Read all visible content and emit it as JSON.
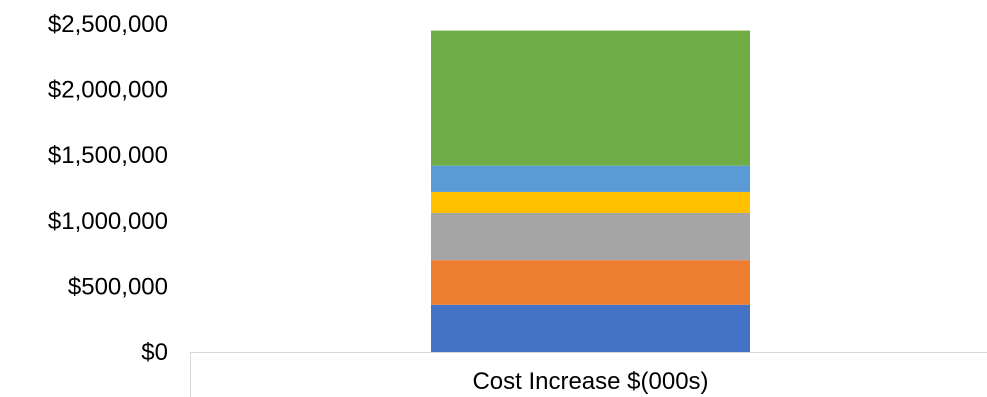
{
  "chart_data": {
    "type": "bar",
    "stacked": true,
    "categories": [
      "Cost Increase $(000s)"
    ],
    "series": [
      {
        "values": [
          360000
        ],
        "color": "#4472C4"
      },
      {
        "values": [
          340000
        ],
        "color": "#ED7D31"
      },
      {
        "values": [
          360000
        ],
        "color": "#A5A5A5"
      },
      {
        "values": [
          160000
        ],
        "color": "#FFC000"
      },
      {
        "values": [
          200000
        ],
        "color": "#5B9BD5"
      },
      {
        "values": [
          1030000
        ],
        "color": "#70AD47"
      }
    ],
    "y_ticks": [
      "$0",
      "$500,000",
      "$1,000,000",
      "$1,500,000",
      "$2,000,000",
      "$2,500,000"
    ],
    "y_tick_values": [
      0,
      500000,
      1000000,
      1500000,
      2000000,
      2500000
    ],
    "ylim": [
      0,
      2500000
    ],
    "grid": false,
    "legend": "none"
  }
}
